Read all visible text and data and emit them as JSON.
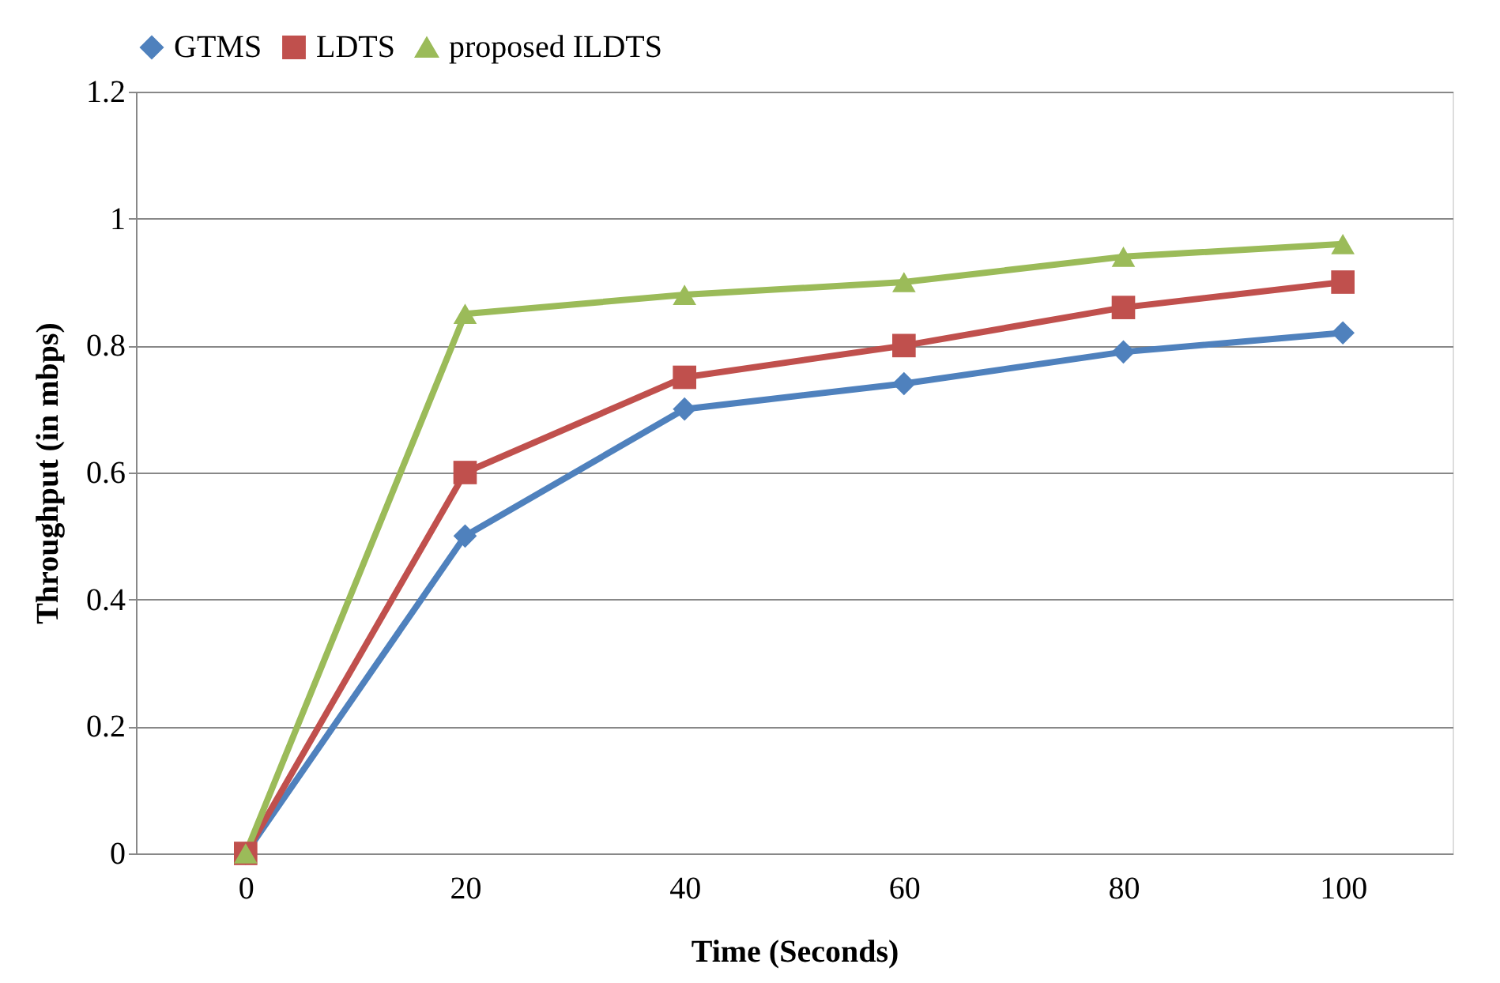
{
  "chart_data": {
    "type": "line",
    "xlabel": "Time (Seconds)",
    "ylabel": "Throughput (in mbps)",
    "categories": [
      "0",
      "20",
      "40",
      "60",
      "80",
      "100"
    ],
    "series": [
      {
        "name": "GTMS",
        "color": "#4f81bd",
        "marker": "diamond",
        "values": [
          0,
          0.5,
          0.7,
          0.74,
          0.79,
          0.82
        ]
      },
      {
        "name": "LDTS",
        "color": "#c0504d",
        "marker": "square",
        "values": [
          0,
          0.6,
          0.75,
          0.8,
          0.86,
          0.9
        ]
      },
      {
        "name": "proposed ILDTS",
        "color": "#9bbb59",
        "marker": "triangle",
        "values": [
          0,
          0.85,
          0.88,
          0.9,
          0.94,
          0.96
        ]
      }
    ],
    "ylim": [
      0,
      1.2
    ],
    "yticks": [
      0,
      0.2,
      0.4,
      0.6,
      0.8,
      1,
      1.2
    ],
    "grid": "y",
    "legend": "top",
    "line_style": "solid"
  }
}
